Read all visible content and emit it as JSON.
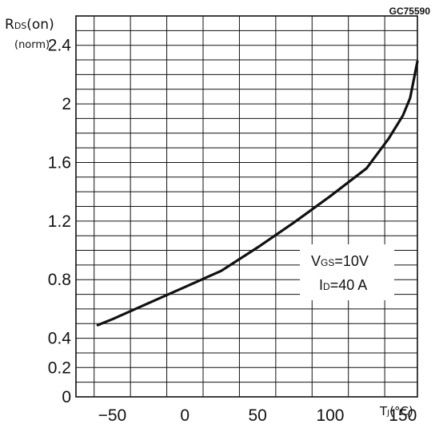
{
  "figure_code": "GC75590",
  "chart_data": {
    "type": "line",
    "ylabel_main": "R",
    "ylabel_sub": "DS",
    "ylabel_rest": "(on)",
    "ylabel_unit": "(norm)",
    "xlabel_main": "T",
    "xlabel_sub": "J",
    "xlabel_unit": "(°C)",
    "xlim": [
      -75,
      160
    ],
    "ylim": [
      0,
      2.6
    ],
    "x_ticks": [
      {
        "value": -50,
        "label": "−50"
      },
      {
        "value": 0,
        "label": "0"
      },
      {
        "value": 50,
        "label": "50"
      },
      {
        "value": 100,
        "label": "100"
      },
      {
        "value": 150,
        "label": "150"
      }
    ],
    "y_ticks": [
      {
        "value": 0,
        "label": "0"
      },
      {
        "value": 0.2,
        "label": "0.2"
      },
      {
        "value": 0.4,
        "label": "0.4"
      },
      {
        "value": 0.8,
        "label": "0.8"
      },
      {
        "value": 1.2,
        "label": "1.2"
      },
      {
        "value": 1.6,
        "label": "1.6"
      },
      {
        "value": 2,
        "label": "2"
      },
      {
        "value": 2.4,
        "label": "2.4"
      }
    ],
    "grid": true,
    "series": [
      {
        "x": [
          -60,
          -50,
          -25,
          0,
          25,
          50,
          75,
          100,
          125,
          140,
          150,
          155,
          160
        ],
        "y": [
          0.49,
          0.53,
          0.64,
          0.75,
          0.86,
          1.02,
          1.19,
          1.37,
          1.56,
          1.76,
          1.92,
          2.04,
          2.29
        ]
      }
    ],
    "annotations": {
      "vgs": {
        "main": "V",
        "sub": "GS",
        "rest": "=10V"
      },
      "id": {
        "main": "I",
        "sub": "D",
        "rest": "=40 A"
      }
    }
  },
  "colors": {
    "line": "#111111",
    "grid": "#111111",
    "background": "#ffffff"
  }
}
